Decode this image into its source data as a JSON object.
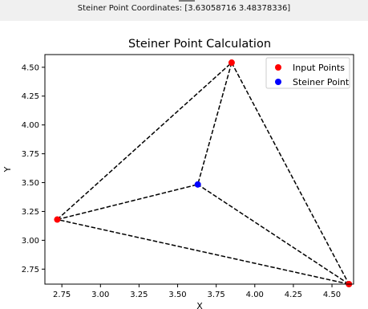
{
  "console": {
    "output_text": "Steiner Point Coordinates: [3.63058716 3.48378336]"
  },
  "colors": {
    "input_points": "#ff0000",
    "steiner_point": "#0000ff",
    "edges": "#000000"
  },
  "chart_data": {
    "type": "scatter",
    "title": "Steiner Point Calculation",
    "xlabel": "X",
    "ylabel": "Y",
    "xlim": [
      2.64,
      4.64
    ],
    "ylim": [
      2.62,
      4.61
    ],
    "xticks": [
      "2.75",
      "3.00",
      "3.25",
      "3.50",
      "3.75",
      "4.00",
      "4.25",
      "4.50"
    ],
    "yticks": [
      "2.75",
      "3.00",
      "3.25",
      "3.50",
      "3.75",
      "4.00",
      "4.25",
      "4.50"
    ],
    "grid": false,
    "legend_position": "top-right",
    "series": [
      {
        "name": "Input Points",
        "color": "red",
        "points": [
          {
            "x": 2.72,
            "y": 3.18
          },
          {
            "x": 3.85,
            "y": 4.54
          },
          {
            "x": 4.61,
            "y": 2.62
          }
        ]
      },
      {
        "name": "Steiner Point",
        "color": "blue",
        "points": [
          {
            "x": 3.63058716,
            "y": 3.48378336
          }
        ]
      }
    ],
    "edges": {
      "style": "dashed",
      "segments": [
        [
          {
            "x": 2.72,
            "y": 3.18
          },
          {
            "x": 3.85,
            "y": 4.54
          }
        ],
        [
          {
            "x": 3.85,
            "y": 4.54
          },
          {
            "x": 4.61,
            "y": 2.62
          }
        ],
        [
          {
            "x": 4.61,
            "y": 2.62
          },
          {
            "x": 2.72,
            "y": 3.18
          }
        ],
        [
          {
            "x": 2.72,
            "y": 3.18
          },
          {
            "x": 3.63058716,
            "y": 3.48378336
          }
        ],
        [
          {
            "x": 3.85,
            "y": 4.54
          },
          {
            "x": 3.63058716,
            "y": 3.48378336
          }
        ],
        [
          {
            "x": 4.61,
            "y": 2.62
          },
          {
            "x": 3.63058716,
            "y": 3.48378336
          }
        ]
      ]
    }
  }
}
